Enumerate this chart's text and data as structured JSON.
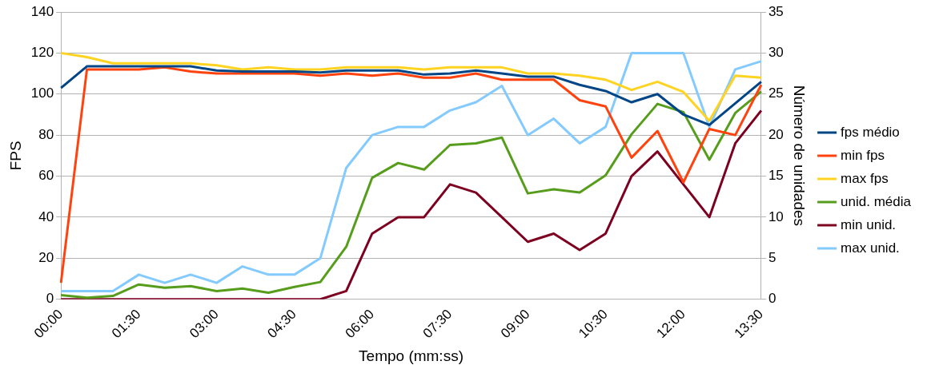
{
  "chart_data": {
    "type": "line",
    "xlabel": "Tempo (mm:ss)",
    "ylabel": "FPS",
    "y2label": "Número de unidades",
    "categories": [
      "00:00",
      null,
      null,
      "01:30",
      null,
      null,
      "03:00",
      null,
      null,
      "04:30",
      null,
      null,
      "06:00",
      null,
      null,
      "07:30",
      null,
      null,
      "09:00",
      null,
      null,
      "10:30",
      null,
      null,
      "12:00",
      null,
      null,
      "13:30"
    ],
    "series": [
      {
        "name": "fps médio",
        "color": "#004586",
        "values": [
          103,
          113.5,
          113.5,
          113.5,
          113.5,
          113.5,
          111.5,
          111,
          111,
          111,
          110.5,
          111.5,
          111.5,
          111.5,
          109.5,
          110,
          111.5,
          110,
          108.5,
          108.5,
          104.5,
          101.5,
          96,
          100,
          90,
          85,
          95.5,
          106
        ]
      },
      {
        "name": "min fps",
        "color": "#ff420e",
        "values": [
          8,
          112,
          112,
          112,
          113,
          111,
          110,
          110,
          110,
          110,
          109,
          110,
          109,
          110,
          108,
          108,
          110,
          107,
          107,
          107,
          97,
          94,
          69,
          82,
          57,
          83,
          80,
          104.5
        ]
      },
      {
        "name": "max fps",
        "color": "#ffd320",
        "values": [
          120,
          118,
          115,
          115,
          115,
          115,
          114,
          112,
          113,
          112,
          112,
          113,
          113,
          113,
          112,
          113,
          113,
          113,
          110,
          110,
          109,
          107,
          102,
          106,
          101,
          87,
          109,
          108
        ]
      },
      {
        "name": "unid. média",
        "color": "#579d1c",
        "values": [
          0.5,
          0.2,
          0.4,
          1.8,
          1.4,
          1.6,
          1,
          1.3,
          0.8,
          1.5,
          2.1,
          6.4,
          14.8,
          16.6,
          15.8,
          18.8,
          19,
          19.7,
          12.9,
          13.4,
          13,
          15.1,
          20.1,
          23.8,
          22.8,
          17,
          22.7,
          25.3
        ],
        "axis": "y2"
      },
      {
        "name": "min unid.",
        "color": "#7e0021",
        "values": [
          0,
          0,
          0,
          0,
          0,
          0,
          0,
          0,
          0,
          0,
          0,
          1,
          8,
          10,
          10,
          14,
          13,
          10,
          7,
          8,
          6,
          8,
          15,
          18,
          14,
          10,
          19,
          23
        ],
        "axis": "y2"
      },
      {
        "name": "max unid.",
        "color": "#83caff",
        "values": [
          1,
          1,
          1,
          3,
          2,
          3,
          2,
          4,
          3,
          3,
          5,
          16,
          20,
          21,
          21,
          23,
          24,
          26,
          20,
          22,
          19,
          21,
          30,
          30,
          30,
          21,
          28,
          29
        ],
        "axis": "y2"
      }
    ],
    "ylim": [
      0,
      140
    ],
    "yticks": [
      0,
      20,
      40,
      60,
      80,
      100,
      120,
      140
    ],
    "y2lim": [
      0,
      35
    ],
    "y2ticks": [
      0,
      5,
      10,
      15,
      20,
      25,
      30,
      35
    ],
    "grid": "y",
    "legend": "right",
    "marker": "none",
    "line_style": "solid"
  }
}
